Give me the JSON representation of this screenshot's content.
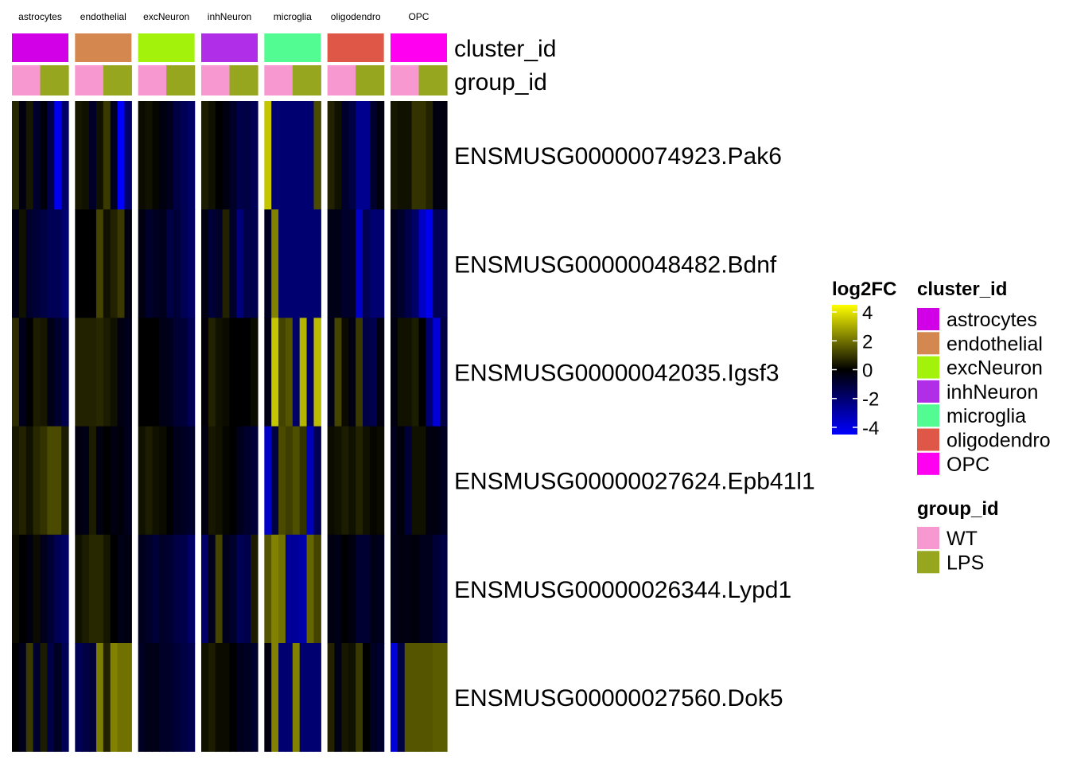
{
  "chart_data": {
    "type": "heatmap",
    "title": "",
    "clusters": [
      "astrocytes",
      "endothelial",
      "excNeuron",
      "inhNeuron",
      "microglia",
      "oligodendro",
      "OPC"
    ],
    "annotation_rows": [
      "cluster_id",
      "group_id"
    ],
    "genes": [
      "ENSMUSG00000074923.Pak6",
      "ENSMUSG00000048482.Bdnf",
      "ENSMUSG00000042035.Igsf3",
      "ENSMUSG00000027624.Epb41l1",
      "ENSMUSG00000026344.Lypd1",
      "ENSMUSG00000027560.Dok5"
    ],
    "samples_per_cluster": 8,
    "sample_groups": [
      "WT",
      "WT",
      "WT",
      "WT",
      "LPS",
      "LPS",
      "LPS",
      "LPS"
    ],
    "values": [
      [
        [
          0.7,
          -0.3,
          0.4,
          -0.8,
          -0.2,
          -1.3,
          -4.2,
          -1.8
        ],
        [
          0.4,
          0.3,
          -0.7,
          0.3,
          1.0,
          -0.6,
          -4.5,
          -1.9
        ],
        [
          0.2,
          0.3,
          0.1,
          -0.3,
          -0.5,
          -1.2,
          -1.5,
          -1.8
        ],
        [
          0.5,
          0.3,
          0.0,
          -0.3,
          -0.7,
          -1.3,
          -1.2,
          -1.5
        ],
        [
          3.5,
          -2.0,
          -2.0,
          -2.0,
          -2.0,
          -2.0,
          -2.0,
          1.3
        ],
        [
          0.6,
          0.3,
          -0.8,
          -1.2,
          -2.5,
          -2.5,
          -0.8,
          -0.3
        ],
        [
          0.4,
          0.3,
          0.3,
          0.9,
          0.9,
          0.6,
          -0.3,
          -0.3
        ]
      ],
      [
        [
          -0.4,
          0.3,
          -0.8,
          -1.0,
          -1.2,
          -1.5,
          -1.5,
          -2.0
        ],
        [
          0.0,
          0.0,
          0.0,
          1.2,
          0.3,
          0.6,
          1.0,
          -0.3
        ],
        [
          -0.3,
          -0.8,
          -0.6,
          -0.5,
          -1.2,
          -1.0,
          -1.5,
          -1.8
        ],
        [
          -0.3,
          -1.0,
          -0.7,
          0.6,
          -0.8,
          -2.2,
          -1.3,
          -1.4
        ],
        [
          -0.6,
          2.3,
          -2.0,
          -2.0,
          -2.0,
          -2.0,
          -2.0,
          -2.0
        ],
        [
          -0.4,
          -0.4,
          -0.8,
          -0.7,
          -3.5,
          -1.5,
          -2.0,
          -2.0
        ],
        [
          -0.5,
          -0.8,
          -1.3,
          -1.8,
          -3.5,
          -4.2,
          -1.5,
          -1.5
        ]
      ],
      [
        [
          0.8,
          -0.5,
          0.0,
          0.5,
          0.4,
          -0.4,
          -0.8,
          -1.3
        ],
        [
          0.6,
          0.6,
          0.6,
          0.7,
          0.5,
          0.3,
          -0.3,
          -0.5
        ],
        [
          0.0,
          0.0,
          0.0,
          -0.4,
          -0.5,
          -0.9,
          -1.0,
          -1.5
        ],
        [
          -0.1,
          0.6,
          0.3,
          0.2,
          0.0,
          0.0,
          0.0,
          0.2
        ],
        [
          -0.4,
          3.5,
          1.2,
          1.5,
          -1.8,
          3.2,
          -1.8,
          3.3
        ],
        [
          -0.4,
          1.2,
          0.2,
          -0.3,
          1.0,
          -1.2,
          -1.4,
          -0.3
        ],
        [
          -0.3,
          0.3,
          0.3,
          0.5,
          0.0,
          -2.0,
          -3.8,
          -1.2
        ]
      ],
      [
        [
          0.4,
          0.6,
          0.3,
          0.7,
          0.9,
          1.3,
          1.3,
          0.5
        ],
        [
          -0.3,
          -0.4,
          0.5,
          -0.3,
          0.0,
          -0.3,
          -0.2,
          -0.5
        ],
        [
          0.3,
          0.5,
          0.3,
          0.2,
          0.0,
          -0.5,
          -0.6,
          -0.8
        ],
        [
          -0.3,
          0.4,
          0.3,
          0.1,
          0.0,
          -0.5,
          -0.8,
          -1.0
        ],
        [
          -3.5,
          -1.2,
          1.3,
          1.1,
          1.4,
          0.9,
          -3.3,
          -1.5
        ],
        [
          0.2,
          0.3,
          0.5,
          0.3,
          0.6,
          0.3,
          0.1,
          0.2
        ],
        [
          -0.5,
          -0.2,
          -1.0,
          0.3,
          0.3,
          -0.3,
          -0.3,
          -0.6
        ]
      ],
      [
        [
          0.2,
          0.0,
          -0.3,
          0.2,
          -0.5,
          -0.9,
          -1.5,
          -1.8
        ],
        [
          0.3,
          0.5,
          0.7,
          0.7,
          0.4,
          0.0,
          -0.4,
          -0.3
        ],
        [
          -0.5,
          -0.7,
          -1.0,
          -0.7,
          -0.9,
          -1.2,
          -1.3,
          -1.8
        ],
        [
          -1.8,
          -0.5,
          1.2,
          -0.5,
          -0.8,
          -1.5,
          -1.3,
          0.5
        ],
        [
          1.5,
          2.3,
          2.0,
          -2.7,
          -2.7,
          -3.0,
          1.8,
          1.2
        ],
        [
          -0.3,
          -0.4,
          0.0,
          -0.3,
          -0.9,
          -0.9,
          -0.4,
          -0.5
        ],
        [
          -0.4,
          -0.3,
          -0.3,
          -0.2,
          -0.5,
          -0.5,
          -1.0,
          -1.2
        ]
      ],
      [
        [
          0.0,
          -0.5,
          1.0,
          -0.8,
          0.5,
          -1.2,
          -0.6,
          -1.5
        ],
        [
          -1.5,
          -1.2,
          -1.0,
          2.2,
          0.6,
          2.3,
          2.0,
          2.0
        ],
        [
          -0.6,
          -0.4,
          -0.4,
          -0.7,
          -0.7,
          -1.0,
          -1.2,
          -1.4
        ],
        [
          0.3,
          0.5,
          0.2,
          0.2,
          0.0,
          -0.5,
          -0.6,
          -0.8
        ],
        [
          -0.3,
          2.3,
          -2.0,
          -2.0,
          2.3,
          -2.0,
          -2.0,
          -2.0
        ],
        [
          0.6,
          -0.4,
          0.4,
          0.3,
          1.0,
          0.0,
          -0.6,
          -0.8
        ],
        [
          -3.8,
          -1.2,
          1.5,
          1.5,
          1.5,
          1.5,
          1.6,
          1.6
        ]
      ]
    ],
    "color_scale": {
      "title": "log2FC",
      "min": -4.5,
      "max": 4.5,
      "ticks": [
        4,
        2,
        0,
        -2,
        -4
      ],
      "colors": [
        "#0000ff",
        "#000000",
        "#ffff00"
      ]
    },
    "cluster_colors": {
      "astrocytes": "#d200e6",
      "endothelial": "#d4884f",
      "excNeuron": "#a2f20c",
      "inhNeuron": "#b12ee8",
      "microglia": "#52fc92",
      "oligodendro": "#de5747",
      "OPC": "#ff00f0"
    },
    "group_colors": {
      "WT": "#f799d0",
      "LPS": "#96a61f"
    },
    "legends": [
      {
        "title": "cluster_id",
        "entries": [
          "astrocytes",
          "endothelial",
          "excNeuron",
          "inhNeuron",
          "microglia",
          "oligodendro",
          "OPC"
        ]
      },
      {
        "title": "group_id",
        "entries": [
          "WT",
          "LPS"
        ]
      }
    ]
  }
}
